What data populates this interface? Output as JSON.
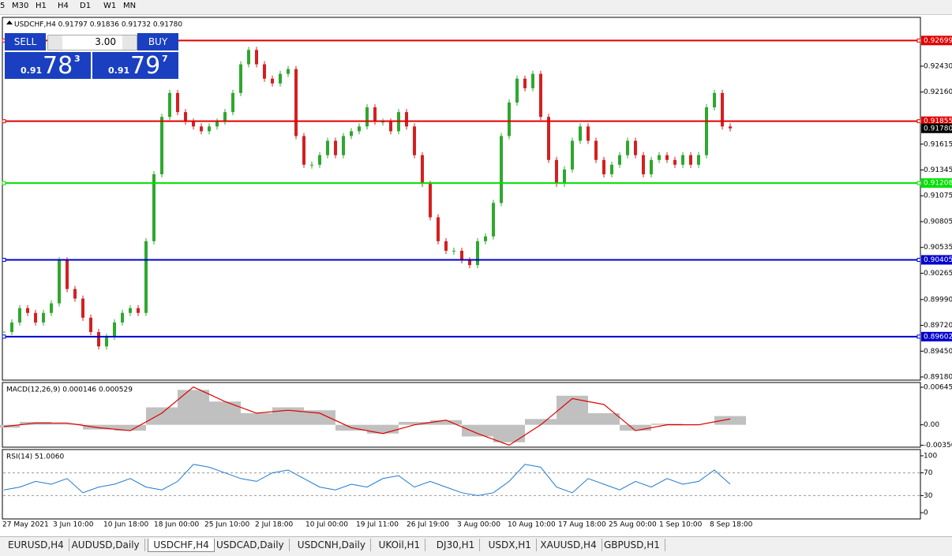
{
  "toolbar": {
    "timeframes": [
      "5",
      "M30",
      "H1",
      "H4",
      "D1",
      "W1",
      "MN"
    ]
  },
  "trade_panel": {
    "sell": "SELL",
    "buy": "BUY",
    "lots": "3.00",
    "bid": {
      "prefix": "0.91",
      "big": "78",
      "small": "3"
    },
    "ask": {
      "prefix": "0.91",
      "big": "79",
      "small": "7"
    }
  },
  "chart_data": [
    {
      "type": "candlestick",
      "title": "USDCHF,H4 0.91797 0.91836 0.91732 0.91780",
      "ylim": [
        0.89147,
        0.92941
      ],
      "yticks": [
        {
          "value": 0.9243,
          "label": "0.92430"
        },
        {
          "value": 0.9216,
          "label": "0.92160"
        },
        0.91615,
        0.91345,
        0.91075,
        0.90805,
        0.90535,
        0.90265,
        {
          "value": 0.8999,
          "label": "0.89990"
        },
        {
          "value": 0.8972,
          "label": "0.89720"
        },
        {
          "value": 0.8945,
          "label": "0.89450"
        },
        {
          "value": 0.8918,
          "label": "0.89180"
        }
      ],
      "levels": [
        {
          "value": 0.92699,
          "color": "#e00000"
        },
        {
          "value": 0.91855,
          "color": "#e00000"
        },
        {
          "value": 0.91208,
          "color": "#00e000"
        },
        {
          "value": 0.90405,
          "color": "#0000cc"
        },
        {
          "value": 0.89602,
          "color": "#0000cc"
        }
      ],
      "bid_level": {
        "value": 0.9178,
        "label": "0.91780"
      },
      "up_color": "#2ea82e",
      "down_color": "#d42020",
      "x_labels": [
        "27 May 2021",
        "3 Jun 10:00",
        "10 Jun 18:00",
        "18 Jun 00:00",
        "25 Jun 10:00",
        "2 Jul 18:00",
        "10 Jul 00:00",
        "19 Jul 11:00",
        "26 Jul 19:00",
        "3 Aug 00:00",
        "10 Aug 10:00",
        "17 Aug 18:00",
        "25 Aug 00:00",
        "1 Sep 10:00",
        "8 Sep 18:00"
      ],
      "closes": [
        0.8965,
        0.8975,
        0.899,
        0.8985,
        0.8975,
        0.8985,
        0.8995,
        0.904,
        0.901,
        0.9,
        0.898,
        0.8965,
        0.895,
        0.896,
        0.8975,
        0.8985,
        0.899,
        0.8985,
        0.906,
        0.913,
        0.919,
        0.9215,
        0.9195,
        0.9185,
        0.918,
        0.9175,
        0.918,
        0.9185,
        0.9195,
        0.9215,
        0.9245,
        0.926,
        0.9245,
        0.923,
        0.9225,
        0.9235,
        0.924,
        0.917,
        0.914,
        0.914,
        0.915,
        0.9165,
        0.915,
        0.917,
        0.9175,
        0.918,
        0.92,
        0.9185,
        0.9185,
        0.9175,
        0.9195,
        0.918,
        0.915,
        0.912,
        0.9085,
        0.906,
        0.905,
        0.905,
        0.904,
        0.9035,
        0.906,
        0.9065,
        0.91,
        0.917,
        0.9205,
        0.923,
        0.922,
        0.9235,
        0.919,
        0.9145,
        0.912,
        0.9135,
        0.9165,
        0.918,
        0.9165,
        0.9145,
        0.913,
        0.914,
        0.915,
        0.9165,
        0.915,
        0.913,
        0.9145,
        0.915,
        0.9145,
        0.914,
        0.915,
        0.914,
        0.915,
        0.92,
        0.9215,
        0.918,
        0.9178
      ]
    },
    {
      "type": "macd",
      "title": "MACD(12,26,9) 0.000146 0.000529",
      "ylim": [
        -0.00384,
        0.00727
      ],
      "yticks": [
        0.006451,
        {
          "value": 0,
          "label": "0.00"
        },
        {
          "value": -0.0035,
          "label": "-0.00350"
        }
      ],
      "histogram": [
        -0.0005,
        0.0005,
        0.0002,
        -0.0008,
        -0.001,
        0.003,
        0.006,
        0.004,
        0.002,
        0.003,
        0.0025,
        -0.001,
        -0.0015,
        0.0005,
        0.0008,
        -0.002,
        -0.003,
        0.001,
        0.005,
        0.002,
        -0.001,
        0.0002,
        0,
        0.0015
      ],
      "signal": [
        -0.0003,
        0.0003,
        0.0003,
        -0.0005,
        -0.001,
        0.002,
        0.0065,
        0.004,
        0.002,
        0.0025,
        0.002,
        -0.0005,
        -0.0015,
        0,
        0.0008,
        -0.0015,
        -0.0035,
        0,
        0.0045,
        0.0035,
        -0.001,
        0,
        0,
        0.001
      ],
      "hist_color": "#c0c0c0",
      "signal_color": "#dd0000"
    },
    {
      "type": "rsi",
      "title": "RSI(14) 51.0060",
      "ylim": [
        -11,
        111
      ],
      "yticks": [
        100,
        70,
        30,
        0
      ],
      "dashed_levels": [
        70,
        30
      ],
      "values": [
        40,
        45,
        55,
        50,
        60,
        35,
        45,
        50,
        60,
        45,
        40,
        55,
        85,
        80,
        70,
        60,
        55,
        70,
        75,
        60,
        45,
        40,
        50,
        45,
        60,
        65,
        45,
        55,
        45,
        35,
        30,
        35,
        55,
        85,
        80,
        45,
        35,
        60,
        50,
        40,
        55,
        45,
        60,
        50,
        55,
        75,
        50
      ],
      "color": "#1e78d0"
    }
  ],
  "tabs": {
    "items": [
      "EURUSD,H4",
      "AUDUSD,Daily",
      "USDCHF,H4",
      "USDCAD,Daily",
      "USDCNH,Daily",
      "UKOil,H1",
      "DJ30,H1",
      "USDX,H1",
      "XAUUSD,H4",
      "GBPUSD,H1"
    ],
    "active": "USDCHF,H4"
  }
}
